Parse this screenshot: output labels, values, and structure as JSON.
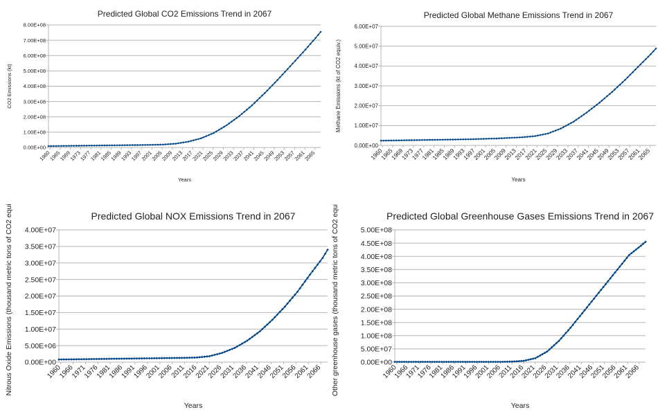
{
  "charts": [
    {
      "title": "Predicted Global CO2 Emissions Trend in 2067",
      "ylabel": "CO2 Emissions (kt)",
      "xlabel": "Years",
      "ytick_labels": [
        "0.00E+00",
        "1.00E+08",
        "2.00E+08",
        "3.00E+08",
        "4.00E+08",
        "5.00E+08",
        "6.00E+08",
        "7.00E+08",
        "8.00E+08"
      ],
      "xtick_labels": [
        "1960",
        "1965",
        "1969",
        "1973",
        "1977",
        "1981",
        "1985",
        "1989",
        "1993",
        "1997",
        "2001",
        "2005",
        "2009",
        "2013",
        "2017",
        "2021",
        "2025",
        "2029",
        "2033",
        "2037",
        "2041",
        "2045",
        "2049",
        "2053",
        "2057",
        "2061",
        "2065"
      ]
    },
    {
      "title": "Predicted Global Methane Emissions Trend in 2067",
      "ylabel": "Methane Emissions (kt of CO2 equiv.)",
      "xlabel": "Years",
      "ytick_labels": [
        "0.00E+00",
        "1.00E+07",
        "2.00E+07",
        "3.00E+07",
        "4.00E+07",
        "5.00E+07",
        "6.00E+07"
      ],
      "xtick_labels": [
        "1960",
        "1965",
        "1969",
        "1973",
        "1977",
        "1981",
        "1985",
        "1989",
        "1993",
        "1997",
        "2001",
        "2005",
        "2009",
        "2013",
        "2017",
        "2021",
        "2025",
        "2029",
        "2033",
        "2037",
        "2041",
        "2045",
        "2049",
        "2053",
        "2057",
        "2061",
        "2065"
      ]
    },
    {
      "title": "Predicted Global NOX Emissions Trend in 2067",
      "ylabel": "Nitrous Oxide Emissions (thousand metric tons of CO2 equiv.)",
      "xlabel": "Years",
      "ytick_labels": [
        "0.00E+00",
        "5.00E+06",
        "1.00E+07",
        "1.50E+07",
        "2.00E+07",
        "2.50E+07",
        "3.00E+07",
        "3.50E+07",
        "4.00E+07"
      ],
      "xtick_labels": [
        "1960",
        "1966",
        "1971",
        "1976",
        "1981",
        "1986",
        "1991",
        "1996",
        "2001",
        "2006",
        "2011",
        "2016",
        "2021",
        "2026",
        "2031",
        "2036",
        "2041",
        "2046",
        "2051",
        "2056",
        "2061",
        "2066"
      ]
    },
    {
      "title": "Predicted Global Greenhouse Gases Emissions Trend in 2067",
      "ylabel": "Other greenhouse gases (thousand metric tons of CO2 equiv.)",
      "xlabel": "Years",
      "ytick_labels": [
        "0.00E+00",
        "5.00E+07",
        "1.00E+08",
        "1.50E+08",
        "2.00E+08",
        "2.50E+08",
        "3.00E+08",
        "3.50E+08",
        "4.00E+08",
        "4.50E+08",
        "5.00E+08"
      ],
      "xtick_labels": [
        "1960",
        "1966",
        "1971",
        "1976",
        "1981",
        "1986",
        "1991",
        "1996",
        "2001",
        "2006",
        "2011",
        "2016",
        "2021",
        "2026",
        "2031",
        "2036",
        "2041",
        "2046",
        "2051",
        "2056",
        "2061",
        "2066"
      ]
    }
  ],
  "chart_data": [
    {
      "type": "line",
      "title": "Predicted Global CO2 Emissions Trend in 2067",
      "xlabel": "Years",
      "ylabel": "CO2 Emissions (kt)",
      "xlim": [
        1960,
        2067
      ],
      "ylim": [
        0,
        800000000
      ],
      "color": "#004586",
      "series": [
        {
          "name": "CO2 Emissions",
          "x": [
            1960,
            1965,
            1970,
            1975,
            1980,
            1985,
            1990,
            1995,
            2000,
            2005,
            2010,
            2015,
            2020,
            2025,
            2030,
            2035,
            2040,
            2045,
            2050,
            2055,
            2060,
            2065,
            2067
          ],
          "y": [
            9000000,
            10000000,
            11000000,
            12000000,
            13000000,
            14000000,
            15000000,
            16000000,
            17000000,
            19000000,
            25000000,
            38000000,
            60000000,
            95000000,
            145000000,
            205000000,
            275000000,
            355000000,
            440000000,
            530000000,
            620000000,
            715000000,
            755000000
          ]
        }
      ]
    },
    {
      "type": "line",
      "title": "Predicted Global Methane Emissions Trend in 2067",
      "xlabel": "Years",
      "ylabel": "Methane Emissions (kt of CO2 equiv.)",
      "xlim": [
        1960,
        2067
      ],
      "ylim": [
        0,
        60000000
      ],
      "color": "#004586",
      "series": [
        {
          "name": "Methane Emissions",
          "x": [
            1960,
            1965,
            1970,
            1975,
            1980,
            1985,
            1990,
            1995,
            2000,
            2005,
            2010,
            2015,
            2020,
            2025,
            2030,
            2035,
            2040,
            2045,
            2050,
            2055,
            2060,
            2065,
            2067
          ],
          "y": [
            2400000,
            2500000,
            2600000,
            2700000,
            2800000,
            2900000,
            3000000,
            3100000,
            3300000,
            3500000,
            3800000,
            4100000,
            4700000,
            6000000,
            8500000,
            12000000,
            16500000,
            21500000,
            27000000,
            33000000,
            39500000,
            46000000,
            48800000
          ]
        }
      ]
    },
    {
      "type": "line",
      "title": "Predicted Global NOX Emissions Trend in 2067",
      "xlabel": "Years",
      "ylabel": "Nitrous Oxide Emissions (thousand metric tons of CO2 equiv.)",
      "xlim": [
        1960,
        2067
      ],
      "ylim": [
        0,
        40000000
      ],
      "color": "#004586",
      "series": [
        {
          "name": "NOX Emissions",
          "x": [
            1960,
            1965,
            1970,
            1975,
            1980,
            1985,
            1990,
            1995,
            2000,
            2005,
            2010,
            2015,
            2020,
            2025,
            2030,
            2035,
            2040,
            2045,
            2050,
            2055,
            2060,
            2065,
            2067
          ],
          "y": [
            800000,
            850000,
            900000,
            950000,
            1000000,
            1050000,
            1100000,
            1150000,
            1200000,
            1250000,
            1300000,
            1400000,
            1800000,
            2800000,
            4300000,
            6500000,
            9300000,
            12800000,
            16800000,
            21300000,
            26500000,
            31500000,
            34000000
          ]
        }
      ]
    },
    {
      "type": "line",
      "title": "Predicted Global Greenhouse Gases Emissions Trend in 2067",
      "xlabel": "Years",
      "ylabel": "Other greenhouse gases (thousand metric tons of CO2 equiv.)",
      "xlim": [
        1960,
        2067
      ],
      "ylim": [
        0,
        500000000
      ],
      "color": "#004586",
      "series": [
        {
          "name": "Other greenhouse gases",
          "x": [
            1960,
            1965,
            1970,
            1975,
            1980,
            1985,
            1990,
            1995,
            2000,
            2005,
            2010,
            2015,
            2020,
            2025,
            2030,
            2035,
            2040,
            2045,
            2050,
            2055,
            2060,
            2065,
            2067
          ],
          "y": [
            1000000,
            1000000,
            1000000,
            1000000,
            1000000,
            1000000,
            1000000,
            1000000,
            1000000,
            1000000,
            2000000,
            5000000,
            15000000,
            40000000,
            80000000,
            130000000,
            185000000,
            240000000,
            295000000,
            350000000,
            405000000,
            440000000,
            455000000
          ]
        }
      ]
    }
  ]
}
